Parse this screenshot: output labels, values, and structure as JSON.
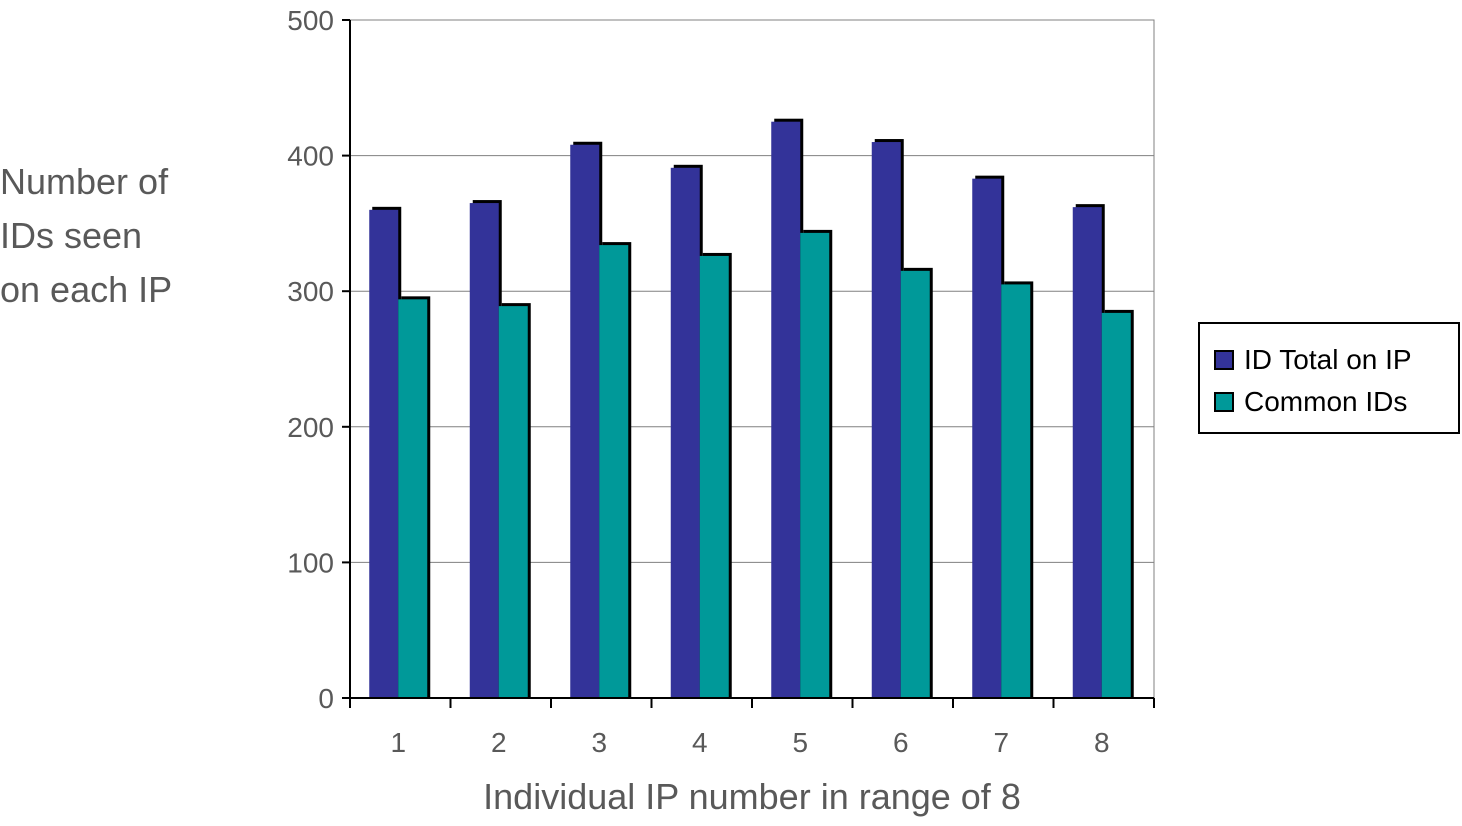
{
  "chart_data": {
    "type": "bar",
    "ylabel_lines": [
      "Number of",
      "IDs seen",
      "on each IP"
    ],
    "xlabel": "Individual IP number in range of 8",
    "categories": [
      "1",
      "2",
      "3",
      "4",
      "5",
      "6",
      "7",
      "8"
    ],
    "ylim": [
      0,
      500
    ],
    "yticks": [
      "0",
      "100",
      "200",
      "300",
      "400",
      "500"
    ],
    "grid": true,
    "legend_position": "right",
    "series": [
      {
        "name": "ID Total on IP",
        "color": "#333399",
        "values": [
          360,
          365,
          408,
          391,
          425,
          410,
          383,
          362
        ]
      },
      {
        "name": "Common IDs",
        "color": "#009999",
        "values": [
          294,
          289,
          334,
          326,
          343,
          315,
          305,
          284
        ]
      }
    ]
  }
}
